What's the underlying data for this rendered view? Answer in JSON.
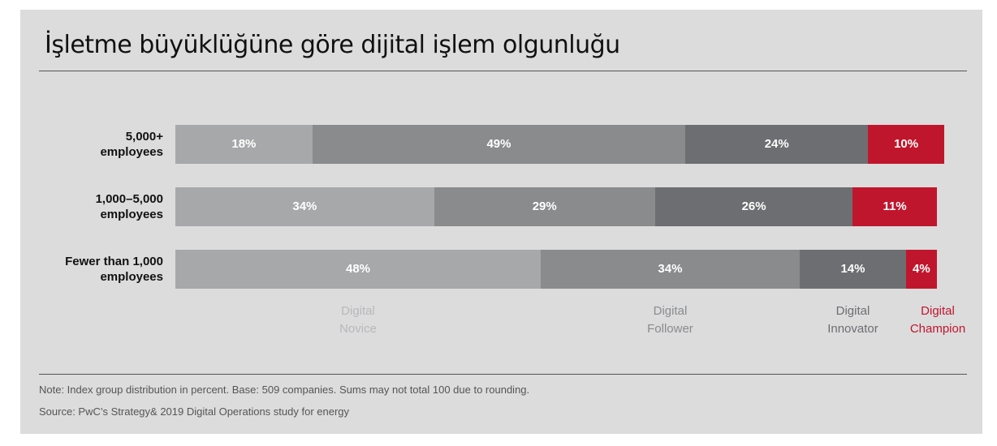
{
  "chart_data": {
    "type": "stacked-bar-horizontal",
    "title": "İşletme büyüklüğüne göre dijital işlem olgunluğu",
    "categories": [
      "5,000+\nemployees",
      "1,000–5,000\nemployees",
      "Fewer than 1,000\nemployees"
    ],
    "xlim": [
      0,
      101
    ],
    "series": [
      {
        "name": "Digital\nNovice",
        "color": "#a7a8aa",
        "label_color": "#b7b8ba",
        "values": [
          18,
          34,
          48
        ],
        "value_labels": [
          "18%",
          "34%",
          "48%"
        ]
      },
      {
        "name": "Digital\nFollower",
        "color": "#8a8b8d",
        "label_color": "#8a8b8d",
        "values": [
          49,
          29,
          34
        ],
        "value_labels": [
          "49%",
          "29%",
          "34%"
        ]
      },
      {
        "name": "Digital\nInnovator",
        "color": "#6d6e71",
        "label_color": "#6d6e71",
        "values": [
          24,
          26,
          14
        ],
        "value_labels": [
          "24%",
          "26%",
          "14%"
        ]
      },
      {
        "name": "Digital\nChampion",
        "color": "#c0162d",
        "label_color": "#c0162d",
        "values": [
          10,
          11,
          4
        ],
        "value_labels": [
          "10%",
          "11%",
          "4%"
        ]
      }
    ],
    "note": "Note: Index group distribution in percent. Base: 509 companies. Sums may not total 100 due to rounding.",
    "source": "Source: PwC’s Strategy& 2019 Digital Operations study for energy"
  }
}
